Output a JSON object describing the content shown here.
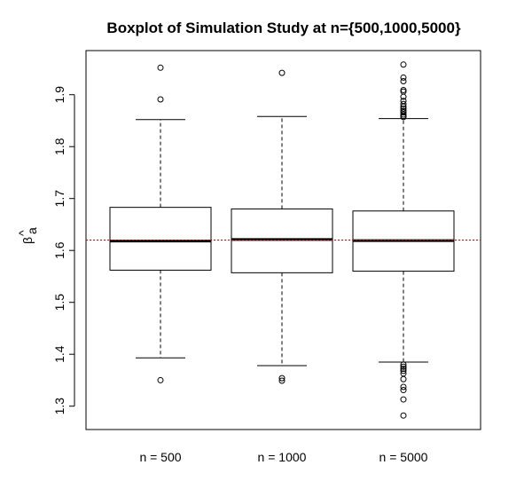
{
  "chart_data": {
    "type": "boxplot",
    "title": "Boxplot of Simulation Study at n={500,1000,5000}",
    "ylabel": "β",
    "ylabel_hat": "^",
    "ylabel_sub": "a",
    "ylim": [
      1.255,
      1.985
    ],
    "yticks": [
      1.3,
      1.4,
      1.5,
      1.6,
      1.7,
      1.8,
      1.9
    ],
    "ytick_labels": [
      "1.3",
      "1.4",
      "1.5",
      "1.6",
      "1.7",
      "1.8",
      "1.9"
    ],
    "reference_line": 1.62,
    "reference_color": "#cc0000",
    "categories": [
      "n = 500",
      "n = 1000",
      "n = 5000"
    ],
    "boxes": [
      {
        "name": "n = 500",
        "whisker_low": 1.393,
        "q1": 1.562,
        "median": 1.618,
        "q3": 1.683,
        "whisker_high": 1.852,
        "outliers": [
          1.952,
          1.891,
          1.35
        ]
      },
      {
        "name": "n = 1000",
        "whisker_low": 1.378,
        "q1": 1.557,
        "median": 1.621,
        "q3": 1.68,
        "whisker_high": 1.858,
        "outliers": [
          1.942,
          1.354,
          1.349
        ]
      },
      {
        "name": "n = 5000",
        "whisker_low": 1.385,
        "q1": 1.56,
        "median": 1.619,
        "q3": 1.676,
        "whisker_high": 1.854,
        "outliers": [
          1.958,
          1.933,
          1.926,
          1.909,
          1.906,
          1.896,
          1.888,
          1.882,
          1.877,
          1.873,
          1.869,
          1.866,
          1.862,
          1.859,
          1.857,
          1.38,
          1.376,
          1.372,
          1.368,
          1.363,
          1.352,
          1.337,
          1.331,
          1.313,
          1.282
        ]
      }
    ]
  }
}
